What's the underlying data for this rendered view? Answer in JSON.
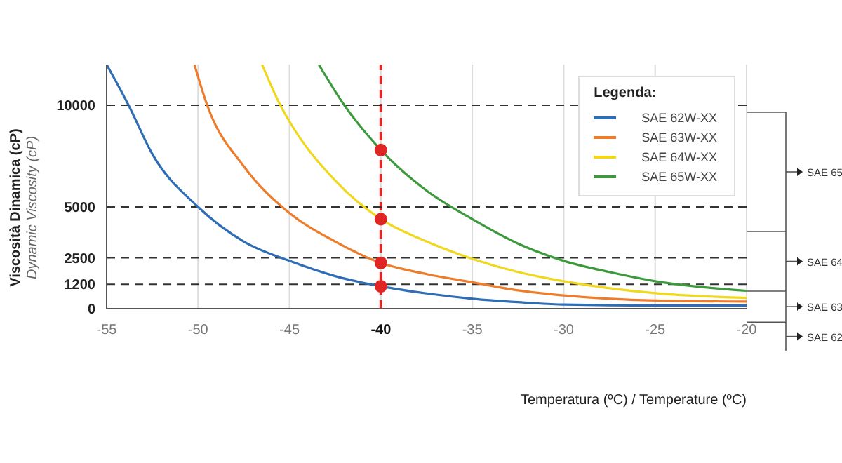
{
  "chart_data": {
    "type": "line",
    "ylabel": "Viscosità Dinamica (cP)\nDynamic Viscosity (cP)",
    "xlabel": "Temperatura (ºC) / Temperature (ºC)",
    "legend_title": "Legenda:",
    "legend": "top right",
    "grid": "x",
    "xlim": [
      -55,
      -20
    ],
    "xticks": [
      -55,
      -50,
      -45,
      -40,
      -35,
      -30,
      -25,
      -20
    ],
    "ylim": [
      0,
      12000
    ],
    "yticks": [
      0,
      1200,
      2500,
      5000,
      10000
    ],
    "series": [
      {
        "name": "SAE 62W-XX",
        "color": "#2f6db5",
        "x": [
          -55,
          -53.8,
          -52.5,
          -50,
          -47.5,
          -45,
          -42.5,
          -40,
          -37.5,
          -35,
          -32.5,
          -30,
          -25,
          -20
        ],
        "values": [
          12000,
          10000,
          7600,
          5000,
          3300,
          2350,
          1600,
          1100,
          750,
          490,
          320,
          200,
          150,
          150
        ]
      },
      {
        "name": "SAE 63W-XX",
        "color": "#ee7d2b",
        "x": [
          -50.2,
          -49.5,
          -47.5,
          -45,
          -42.5,
          -40,
          -37.5,
          -35,
          -32.5,
          -30,
          -25,
          -20
        ],
        "values": [
          12000,
          10000,
          7000,
          4700,
          3300,
          2250,
          1700,
          1300,
          900,
          650,
          400,
          350
        ]
      },
      {
        "name": "SAE 64W-XX",
        "color": "#f0d81e",
        "x": [
          -46.5,
          -45.5,
          -45,
          -42.5,
          -40,
          -37.5,
          -35,
          -32.5,
          -30,
          -25,
          -20
        ],
        "values": [
          12000,
          10000,
          9200,
          6300,
          4400,
          3300,
          2450,
          1800,
          1350,
          760,
          530
        ]
      },
      {
        "name": "SAE 65W-XX",
        "color": "#3c9a3c",
        "x": [
          -43.4,
          -42,
          -40,
          -37.5,
          -35,
          -32.5,
          -30,
          -27.5,
          -25,
          -20
        ],
        "values": [
          12000,
          10000,
          7800,
          5800,
          4400,
          3200,
          2350,
          1800,
          1350,
          880
        ]
      },
      {
        "type": "scatter",
        "marker": "circle",
        "color": "#e02525",
        "x": [
          -40,
          -40,
          -40,
          -40
        ],
        "values": [
          1100,
          2250,
          4400,
          7800
        ]
      }
    ],
    "ref_lines": [
      {
        "axis": "x",
        "value": -40,
        "color": "#e02525",
        "line_style": "dashed"
      },
      {
        "axis": "y",
        "value": 10000,
        "color": "#333333",
        "line_style": "dashed"
      },
      {
        "axis": "y",
        "value": 5000,
        "color": "#333333",
        "line_style": "dashed"
      },
      {
        "axis": "y",
        "value": 2500,
        "color": "#333333",
        "line_style": "dashed"
      },
      {
        "axis": "y",
        "value": 1200,
        "color": "#333333",
        "line_style": "dashed"
      }
    ],
    "annotations": [
      "SAE 65",
      "SAE 64",
      "SAE 63",
      "SAE 62"
    ]
  }
}
